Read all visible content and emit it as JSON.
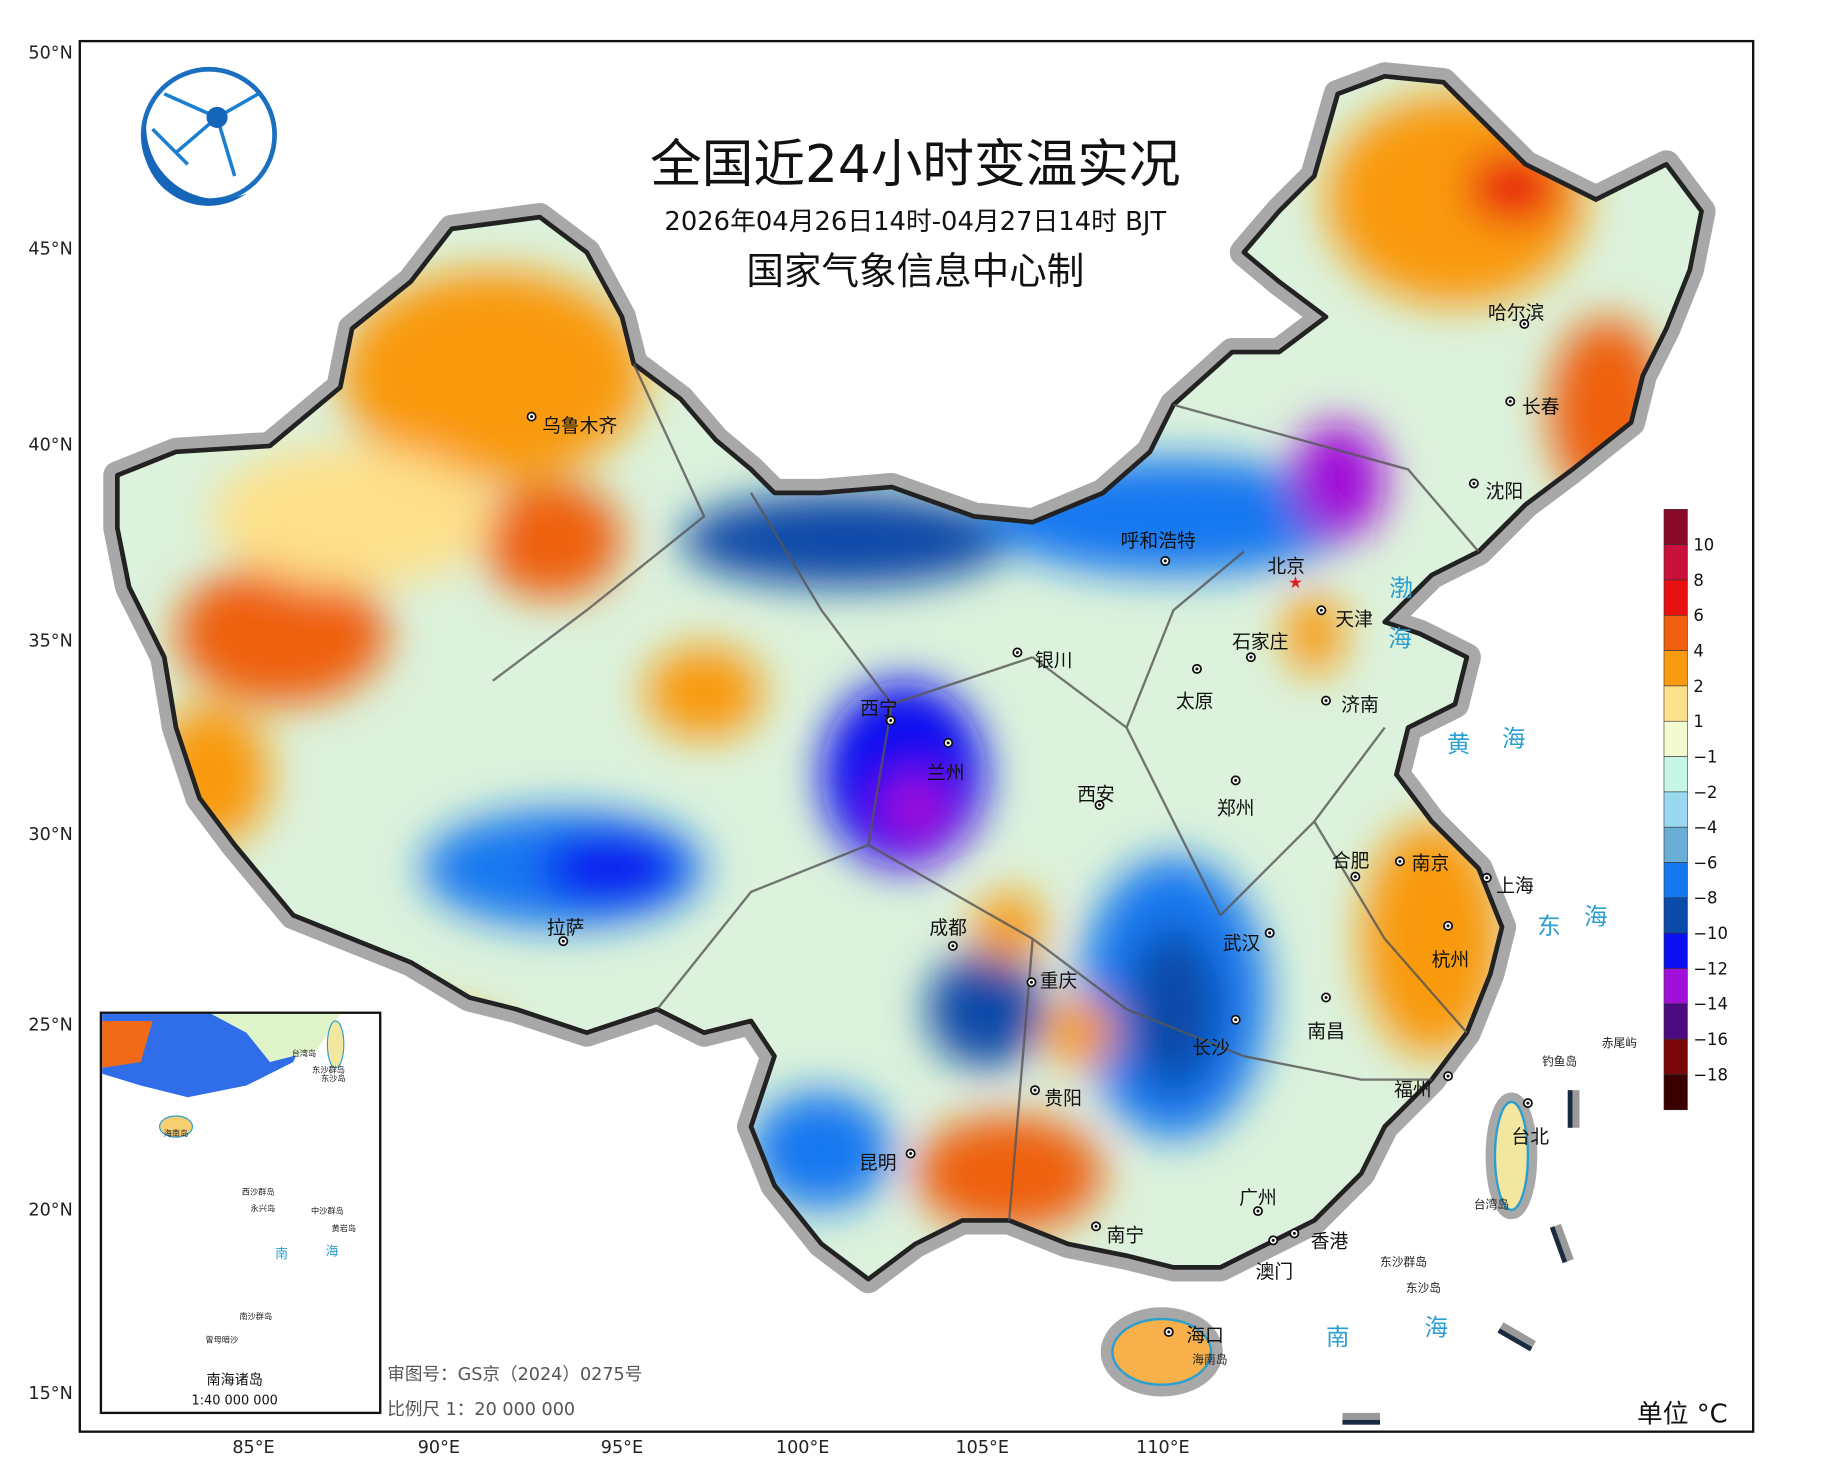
{
  "header": {
    "title": "全国近24小时变温实况",
    "time_range": "2026年04月26日14时-04月27日14时 BJT",
    "producer": "国家气象信息中心制"
  },
  "axes": {
    "lat_labels": [
      "50°N",
      "45°N",
      "40°N",
      "35°N",
      "30°N",
      "25°N",
      "20°N",
      "15°N"
    ],
    "lon_labels": [
      "85°E",
      "90°E",
      "95°E",
      "100°E",
      "105°E",
      "110°E"
    ]
  },
  "legend": {
    "unit": "单位 °C",
    "labels": [
      "10",
      "8",
      "6",
      "4",
      "2",
      "1",
      "−1",
      "−2",
      "−4",
      "−6",
      "−8",
      "−10",
      "−12",
      "−14",
      "−16",
      "−18"
    ],
    "colors": [
      "#8b0a2a",
      "#c8103a",
      "#e81010",
      "#ee6010",
      "#f99a10",
      "#fde08a",
      "#f2fad0",
      "#c6f6e6",
      "#9ad8f0",
      "#6aaed6",
      "#1278f0",
      "#0a4aa8",
      "#0a10f0",
      "#a010d8",
      "#4a0a80",
      "#7a0808",
      "#3a0000"
    ]
  },
  "cities": [
    {
      "name": "乌鲁木齐"
    },
    {
      "name": "呼和浩特"
    },
    {
      "name": "北京"
    },
    {
      "name": "天津"
    },
    {
      "name": "石家庄"
    },
    {
      "name": "银川"
    },
    {
      "name": "太原"
    },
    {
      "name": "济南"
    },
    {
      "name": "西宁"
    },
    {
      "name": "兰州"
    },
    {
      "name": "西安"
    },
    {
      "name": "郑州"
    },
    {
      "name": "合肥"
    },
    {
      "name": "南京"
    },
    {
      "name": "上海"
    },
    {
      "name": "武汉"
    },
    {
      "name": "杭州"
    },
    {
      "name": "拉萨"
    },
    {
      "name": "成都"
    },
    {
      "name": "重庆"
    },
    {
      "name": "长沙"
    },
    {
      "name": "南昌"
    },
    {
      "name": "贵阳"
    },
    {
      "name": "福州"
    },
    {
      "name": "台北"
    },
    {
      "name": "昆明"
    },
    {
      "name": "南宁"
    },
    {
      "name": "广州"
    },
    {
      "name": "香港"
    },
    {
      "name": "澳门"
    },
    {
      "name": "海口"
    },
    {
      "name": "哈尔滨"
    },
    {
      "name": "长春"
    },
    {
      "name": "沈阳"
    }
  ],
  "seas": [
    "渤",
    "海",
    "黄",
    "海",
    "东",
    "海",
    "南",
    "海"
  ],
  "islands": [
    "钓鱼岛",
    "赤尾屿",
    "台湾岛",
    "东沙群岛",
    "东沙岛",
    "海南岛"
  ],
  "inset": {
    "title": "南海诸岛",
    "scale": "1:40 000 000",
    "labels": [
      "台湾岛",
      "东沙群岛",
      "东沙岛",
      "海南岛",
      "西沙群岛",
      "永兴岛",
      "中沙群岛",
      "黄岩岛",
      "南",
      "海",
      "南沙群岛",
      "曾母暗沙"
    ]
  },
  "footer": {
    "review_no": "审图号：GS京（2024）0275号",
    "scale": "比例尺 1：20 000 000"
  }
}
